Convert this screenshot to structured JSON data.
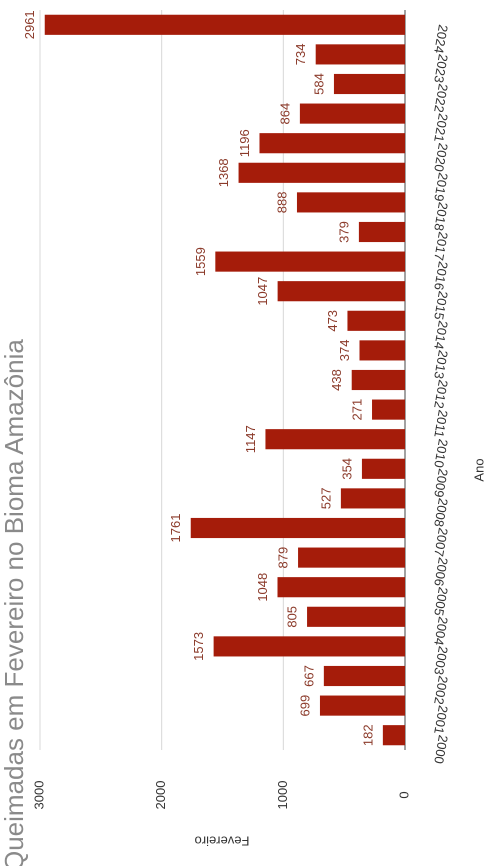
{
  "chart_data": {
    "type": "bar",
    "title": "Queimadas em Fevereiro no Bioma Amazônia",
    "x_label": "Ano",
    "y_label": "Fevereiro",
    "categories": [
      "2000",
      "2001",
      "2002",
      "2003",
      "2004",
      "2005",
      "2006",
      "2007",
      "2008",
      "2009",
      "2010",
      "2011",
      "2012",
      "2013",
      "2014",
      "2015",
      "2016",
      "2017",
      "2018",
      "2019",
      "2020",
      "2021",
      "2022",
      "2023",
      "2024"
    ],
    "values": [
      182,
      699,
      667,
      1573,
      805,
      1048,
      879,
      1761,
      527,
      354,
      1147,
      271,
      438,
      374,
      473,
      1047,
      1559,
      379,
      888,
      1368,
      1196,
      864,
      584,
      734,
      2961
    ],
    "color": "#a51c0a",
    "ylim": [
      0,
      3000
    ],
    "yticks": [
      0,
      1000,
      2000,
      3000
    ],
    "grid": true
  }
}
